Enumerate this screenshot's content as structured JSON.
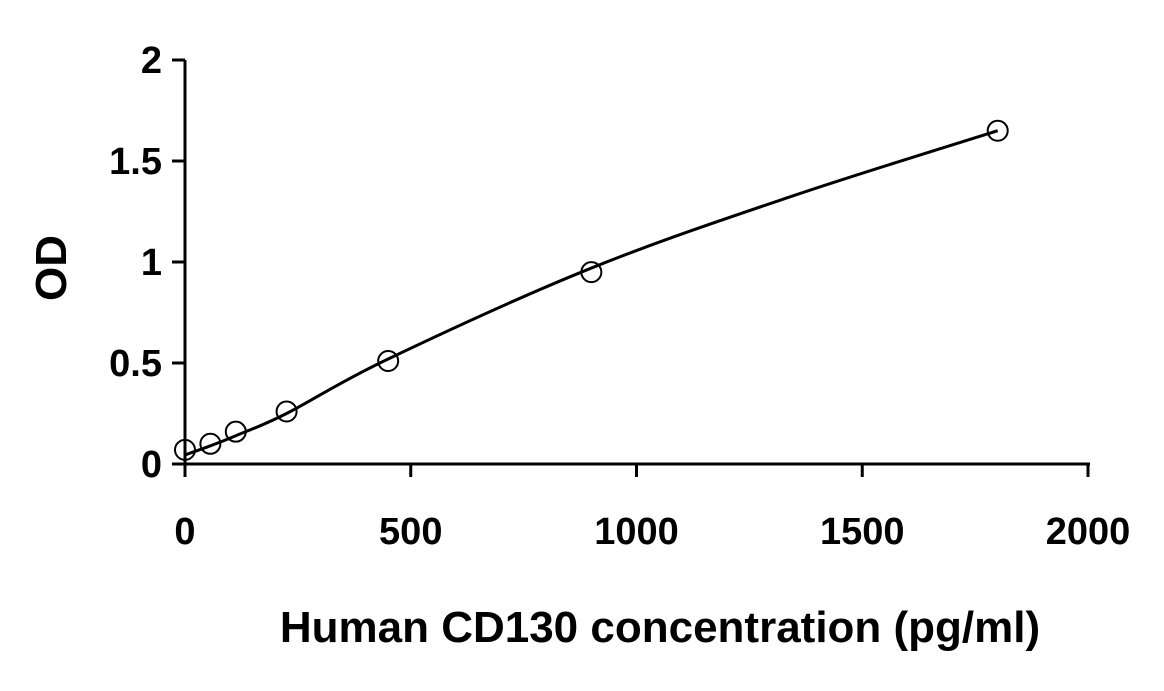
{
  "chart_data": {
    "type": "scatter",
    "title": "",
    "xlabel": "Human CD130 concentration (pg/ml)",
    "ylabel": "OD",
    "xlim": [
      0,
      2000
    ],
    "ylim": [
      0,
      2
    ],
    "x_ticks": [
      0,
      500,
      1000,
      1500,
      2000
    ],
    "x_tick_labels": [
      "0",
      "500",
      "1000",
      "1500",
      "2000"
    ],
    "y_ticks": [
      0,
      0.5,
      1,
      1.5,
      2
    ],
    "y_tick_labels": [
      "0",
      "0.5",
      "1",
      "1.5",
      "2"
    ],
    "grid": false,
    "legend": "none",
    "series": [
      {
        "marker": "open-circle",
        "x": [
          0,
          56.25,
          112.5,
          225,
          450,
          900,
          1800
        ],
        "y": [
          0.07,
          0.1,
          0.16,
          0.26,
          0.51,
          0.95,
          1.65
        ]
      }
    ],
    "fit_curve": {
      "style": "smooth-line",
      "x": [
        0,
        56.25,
        112.5,
        225,
        450,
        900,
        1350,
        1800
      ],
      "y": [
        0.045,
        0.09,
        0.14,
        0.25,
        0.52,
        0.97,
        1.33,
        1.65
      ]
    },
    "colors": {
      "axis": "#000000",
      "marker_stroke": "#000000",
      "curve": "#000000",
      "background": "#ffffff"
    }
  }
}
